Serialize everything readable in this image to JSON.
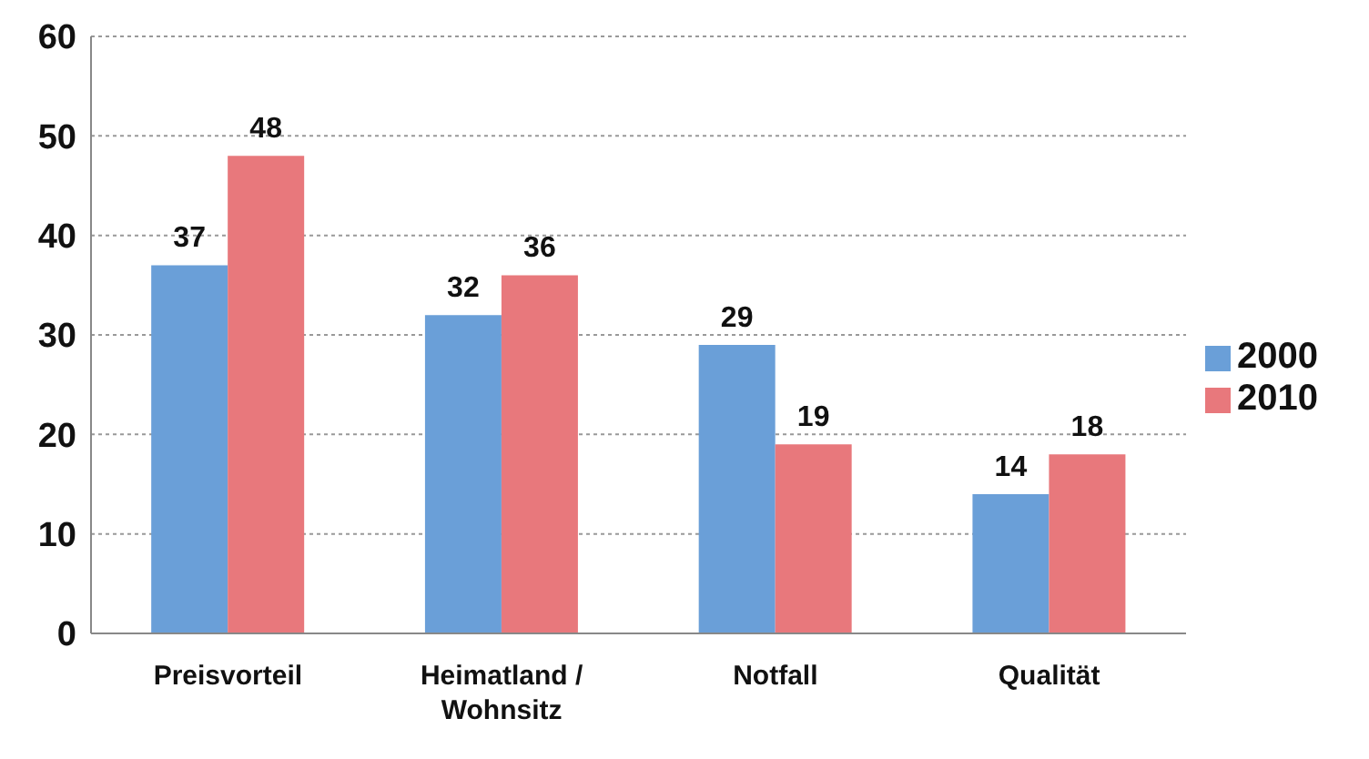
{
  "chart_data": {
    "type": "bar",
    "categories": [
      "Preisvorteil",
      "Heimatland / Wohnsitz",
      "Notfall",
      "Qualität"
    ],
    "series": [
      {
        "name": "2000",
        "color": "#6a9fd8",
        "values": [
          37,
          32,
          29,
          14
        ]
      },
      {
        "name": "2010",
        "color": "#e8787c",
        "values": [
          48,
          36,
          19,
          18
        ]
      }
    ],
    "ylim": [
      0,
      60
    ],
    "yticks": [
      0,
      10,
      20,
      30,
      40,
      50,
      60
    ],
    "grid": "y",
    "legend": "right",
    "data_labels": true
  }
}
